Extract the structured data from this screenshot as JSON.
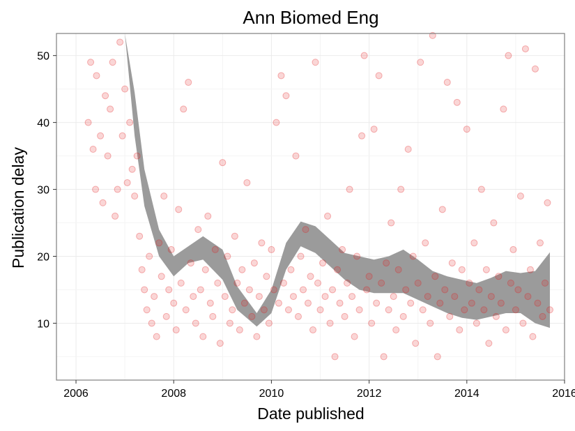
{
  "chart_data": {
    "type": "scatter",
    "title": "Ann Biomed Eng",
    "xlabel": "Date published",
    "ylabel": "Publication delay",
    "xlim": [
      2005.6,
      2016.0
    ],
    "ylim": [
      1.5,
      53.3
    ],
    "x_ticks": [
      2006,
      2008,
      2010,
      2012,
      2014,
      2016
    ],
    "x_tick_labels": [
      "2006",
      "2008",
      "2010",
      "2012",
      "2014",
      "2016"
    ],
    "y_ticks": [
      10,
      20,
      30,
      40,
      50
    ],
    "y_tick_labels": [
      "10",
      "20",
      "30",
      "40",
      "50"
    ],
    "grid": true,
    "colors": {
      "points": "#e41a1c",
      "band": "#999999",
      "grid": "#ebebeb",
      "border": "#7f7f7f"
    },
    "series": [
      {
        "type": "scatter",
        "points": [
          [
            2006.25,
            40
          ],
          [
            2006.3,
            49
          ],
          [
            2006.35,
            36
          ],
          [
            2006.4,
            30
          ],
          [
            2006.42,
            47
          ],
          [
            2006.5,
            38
          ],
          [
            2006.55,
            28
          ],
          [
            2006.6,
            44
          ],
          [
            2006.65,
            35
          ],
          [
            2006.7,
            42
          ],
          [
            2006.75,
            49
          ],
          [
            2006.8,
            26
          ],
          [
            2006.85,
            30
          ],
          [
            2006.9,
            52
          ],
          [
            2006.95,
            38
          ],
          [
            2007.0,
            45
          ],
          [
            2007.05,
            31
          ],
          [
            2007.1,
            40
          ],
          [
            2007.15,
            33
          ],
          [
            2007.2,
            29
          ],
          [
            2007.25,
            35
          ],
          [
            2007.3,
            23
          ],
          [
            2007.35,
            18
          ],
          [
            2007.4,
            15
          ],
          [
            2007.45,
            12
          ],
          [
            2007.5,
            20
          ],
          [
            2007.55,
            10
          ],
          [
            2007.6,
            14
          ],
          [
            2007.65,
            8
          ],
          [
            2007.7,
            22
          ],
          [
            2007.75,
            17
          ],
          [
            2007.8,
            29
          ],
          [
            2007.85,
            11
          ],
          [
            2007.9,
            15
          ],
          [
            2007.95,
            21
          ],
          [
            2008.0,
            13
          ],
          [
            2008.05,
            9
          ],
          [
            2008.1,
            27
          ],
          [
            2008.15,
            16
          ],
          [
            2008.2,
            42
          ],
          [
            2008.25,
            12
          ],
          [
            2008.3,
            46
          ],
          [
            2008.35,
            19
          ],
          [
            2008.4,
            14
          ],
          [
            2008.45,
            10
          ],
          [
            2008.5,
            24
          ],
          [
            2008.55,
            15
          ],
          [
            2008.6,
            8
          ],
          [
            2008.65,
            18
          ],
          [
            2008.7,
            26
          ],
          [
            2008.75,
            13
          ],
          [
            2008.8,
            11
          ],
          [
            2008.85,
            21
          ],
          [
            2008.9,
            16
          ],
          [
            2008.95,
            7
          ],
          [
            2009.0,
            34
          ],
          [
            2009.05,
            14
          ],
          [
            2009.1,
            20
          ],
          [
            2009.15,
            10
          ],
          [
            2009.2,
            12
          ],
          [
            2009.25,
            23
          ],
          [
            2009.3,
            16
          ],
          [
            2009.35,
            9
          ],
          [
            2009.4,
            18
          ],
          [
            2009.45,
            13
          ],
          [
            2009.5,
            31
          ],
          [
            2009.55,
            15
          ],
          [
            2009.6,
            11
          ],
          [
            2009.65,
            19
          ],
          [
            2009.7,
            8
          ],
          [
            2009.75,
            14
          ],
          [
            2009.8,
            22
          ],
          [
            2009.85,
            12
          ],
          [
            2009.9,
            17
          ],
          [
            2009.95,
            10
          ],
          [
            2010.0,
            21
          ],
          [
            2010.05,
            15
          ],
          [
            2010.1,
            40
          ],
          [
            2010.15,
            13
          ],
          [
            2010.2,
            47
          ],
          [
            2010.25,
            16
          ],
          [
            2010.3,
            44
          ],
          [
            2010.35,
            12
          ],
          [
            2010.4,
            18
          ],
          [
            2010.45,
            14
          ],
          [
            2010.5,
            35
          ],
          [
            2010.55,
            11
          ],
          [
            2010.6,
            20
          ],
          [
            2010.65,
            15
          ],
          [
            2010.7,
            24
          ],
          [
            2010.75,
            13
          ],
          [
            2010.8,
            17
          ],
          [
            2010.85,
            9
          ],
          [
            2010.9,
            49
          ],
          [
            2010.95,
            16
          ],
          [
            2011.0,
            12
          ],
          [
            2011.05,
            19
          ],
          [
            2011.1,
            14
          ],
          [
            2011.15,
            26
          ],
          [
            2011.2,
            10
          ],
          [
            2011.25,
            15
          ],
          [
            2011.3,
            5
          ],
          [
            2011.35,
            18
          ],
          [
            2011.4,
            13
          ],
          [
            2011.45,
            21
          ],
          [
            2011.5,
            11
          ],
          [
            2011.55,
            16
          ],
          [
            2011.6,
            30
          ],
          [
            2011.65,
            14
          ],
          [
            2011.7,
            8
          ],
          [
            2011.75,
            20
          ],
          [
            2011.8,
            12
          ],
          [
            2011.85,
            38
          ],
          [
            2011.9,
            50
          ],
          [
            2011.95,
            15
          ],
          [
            2012.0,
            17
          ],
          [
            2012.05,
            10
          ],
          [
            2012.1,
            39
          ],
          [
            2012.15,
            13
          ],
          [
            2012.2,
            47
          ],
          [
            2012.25,
            16
          ],
          [
            2012.3,
            5
          ],
          [
            2012.35,
            19
          ],
          [
            2012.4,
            12
          ],
          [
            2012.45,
            25
          ],
          [
            2012.5,
            14
          ],
          [
            2012.55,
            9
          ],
          [
            2012.6,
            18
          ],
          [
            2012.65,
            30
          ],
          [
            2012.7,
            11
          ],
          [
            2012.75,
            15
          ],
          [
            2012.8,
            36
          ],
          [
            2012.85,
            13
          ],
          [
            2012.9,
            20
          ],
          [
            2012.95,
            7
          ],
          [
            2013.0,
            16
          ],
          [
            2013.05,
            49
          ],
          [
            2013.1,
            12
          ],
          [
            2013.15,
            22
          ],
          [
            2013.2,
            14
          ],
          [
            2013.25,
            10
          ],
          [
            2013.3,
            53
          ],
          [
            2013.35,
            17
          ],
          [
            2013.4,
            5
          ],
          [
            2013.45,
            13
          ],
          [
            2013.5,
            27
          ],
          [
            2013.55,
            15
          ],
          [
            2013.6,
            46
          ],
          [
            2013.65,
            11
          ],
          [
            2013.7,
            19
          ],
          [
            2013.75,
            14
          ],
          [
            2013.8,
            43
          ],
          [
            2013.85,
            9
          ],
          [
            2013.9,
            18
          ],
          [
            2013.95,
            12
          ],
          [
            2014.0,
            39
          ],
          [
            2014.05,
            16
          ],
          [
            2014.1,
            13
          ],
          [
            2014.15,
            22
          ],
          [
            2014.2,
            10
          ],
          [
            2014.25,
            15
          ],
          [
            2014.3,
            30
          ],
          [
            2014.35,
            12
          ],
          [
            2014.4,
            18
          ],
          [
            2014.45,
            7
          ],
          [
            2014.5,
            14
          ],
          [
            2014.55,
            25
          ],
          [
            2014.6,
            11
          ],
          [
            2014.65,
            17
          ],
          [
            2014.7,
            13
          ],
          [
            2014.75,
            42
          ],
          [
            2014.8,
            9
          ],
          [
            2014.85,
            50
          ],
          [
            2014.9,
            16
          ],
          [
            2014.95,
            21
          ],
          [
            2015.0,
            12
          ],
          [
            2015.05,
            15
          ],
          [
            2015.1,
            29
          ],
          [
            2015.15,
            10
          ],
          [
            2015.2,
            51
          ],
          [
            2015.25,
            14
          ],
          [
            2015.3,
            18
          ],
          [
            2015.35,
            8
          ],
          [
            2015.4,
            48
          ],
          [
            2015.45,
            13
          ],
          [
            2015.5,
            22
          ],
          [
            2015.55,
            11
          ],
          [
            2015.6,
            16
          ],
          [
            2015.65,
            28
          ],
          [
            2015.7,
            12
          ]
        ]
      },
      {
        "type": "area",
        "name": "",
        "x": [
          2007.0,
          2007.2,
          2007.4,
          2007.7,
          2008.0,
          2008.3,
          2008.6,
          2009.0,
          2009.3,
          2009.7,
          2010.0,
          2010.3,
          2010.6,
          2010.9,
          2011.2,
          2011.5,
          2011.8,
          2012.1,
          2012.4,
          2012.7,
          2013.0,
          2013.3,
          2013.6,
          2013.9,
          2014.2,
          2014.5,
          2014.8,
          2015.1,
          2015.4,
          2015.7
        ],
        "upper": [
          53.3,
          44.5,
          33.0,
          24.0,
          20.0,
          21.5,
          23.0,
          21.0,
          15.5,
          11.5,
          15.0,
          22.0,
          25.2,
          24.5,
          22.5,
          20.5,
          20.0,
          19.5,
          20.0,
          21.0,
          19.5,
          17.8,
          17.0,
          16.5,
          16.0,
          16.8,
          17.8,
          17.5,
          17.8,
          20.6
        ],
        "lower": [
          53.3,
          38.0,
          27.5,
          20.0,
          17.0,
          19.0,
          19.5,
          16.5,
          12.0,
          9.5,
          11.5,
          18.0,
          21.5,
          20.5,
          18.5,
          16.5,
          15.0,
          14.5,
          14.5,
          14.5,
          13.5,
          12.5,
          11.5,
          10.8,
          10.5,
          11.0,
          11.5,
          11.5,
          10.0,
          9.3
        ]
      }
    ]
  }
}
